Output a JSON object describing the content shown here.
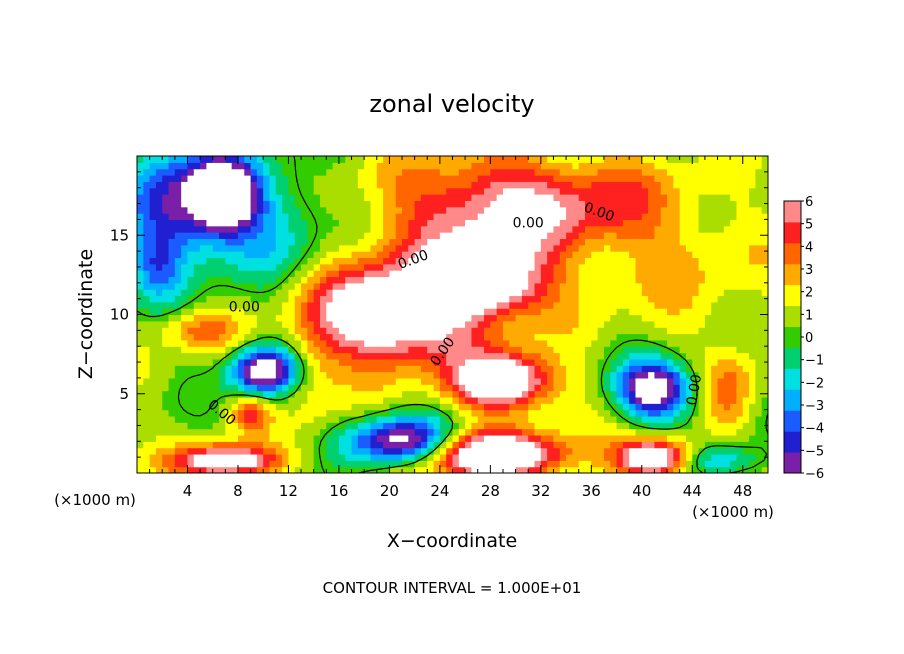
{
  "chart_data": {
    "type": "heatmap",
    "title": "zonal velocity",
    "xlabel": "X−coordinate",
    "ylabel": "Z−coordinate",
    "x_unit_label": "(×1000 m)",
    "y_unit_label": "(×1000 m)",
    "xlim": [
      0,
      50
    ],
    "ylim": [
      0,
      20
    ],
    "x_ticks": [
      4,
      8,
      12,
      16,
      20,
      24,
      28,
      32,
      36,
      40,
      44,
      48
    ],
    "y_ticks": [
      5,
      10,
      15
    ],
    "colorbar": {
      "min": -6,
      "max": 6,
      "ticks": [
        6,
        5,
        4,
        3,
        2,
        1,
        0,
        -1,
        -2,
        -3,
        -4,
        -5,
        -6
      ],
      "colors": [
        "#7a1fa8",
        "#2020d0",
        "#1a5cff",
        "#00b0ff",
        "#00e0e0",
        "#00d070",
        "#33cc00",
        "#aadd00",
        "#ffff00",
        "#ffaa00",
        "#ff6600",
        "#ff2020",
        "#ff8888"
      ]
    },
    "features": [
      {
        "x": 7,
        "z": 17.5,
        "rx": 2.5,
        "rz": 2.2,
        "value": -9
      },
      {
        "x": 4,
        "z": 17,
        "rx": 4,
        "rz": 4,
        "value": -5
      },
      {
        "x": 11,
        "z": 16,
        "rx": 4,
        "rz": 4,
        "value": -3
      },
      {
        "x": 2,
        "z": 17,
        "rx": 3,
        "rz": 4,
        "value": -2
      },
      {
        "x": 1.5,
        "z": 13,
        "rx": 2,
        "rz": 2,
        "value": -3
      },
      {
        "x": 27,
        "z": 15,
        "rx": 8,
        "rz": 5,
        "value": 4
      },
      {
        "x": 30,
        "z": 17,
        "rx": 8,
        "rz": 3,
        "value": 3
      },
      {
        "x": 28,
        "z": 12,
        "rx": 4,
        "rz": 2,
        "value": 6
      },
      {
        "x": 20,
        "z": 10,
        "rx": 6,
        "rz": 3,
        "value": 9
      },
      {
        "x": 29,
        "z": 5.8,
        "rx": 4,
        "rz": 1.8,
        "value": 9
      },
      {
        "x": 10,
        "z": 6.5,
        "rx": 2.5,
        "rz": 1.5,
        "value": -9
      },
      {
        "x": 41,
        "z": 5.3,
        "rx": 3,
        "rz": 1.8,
        "value": -9
      },
      {
        "x": 28,
        "z": 1.2,
        "rx": 6,
        "rz": 1.5,
        "value": 9
      },
      {
        "x": 21,
        "z": 2,
        "rx": 4,
        "rz": 1.5,
        "value": -9
      },
      {
        "x": 41,
        "z": 1,
        "rx": 3,
        "rz": 1.2,
        "value": 9
      },
      {
        "x": 7,
        "z": 0.8,
        "rx": 4,
        "rz": 1,
        "value": 8
      },
      {
        "x": 47,
        "z": 5,
        "rx": 2,
        "rz": 2.5,
        "value": 3
      },
      {
        "x": 5,
        "z": 9,
        "rx": 3,
        "rz": 1.2,
        "value": 3
      },
      {
        "x": 44,
        "z": 13,
        "rx": 7,
        "rz": 5,
        "value": 1.5
      },
      {
        "x": 38,
        "z": 17,
        "rx": 6,
        "rz": 3,
        "value": 2
      },
      {
        "x": 9,
        "z": 3.8,
        "rx": 1.5,
        "rz": 1,
        "value": 4
      },
      {
        "x": 14,
        "z": 6,
        "rx": 2,
        "rz": 4,
        "value": 1.5
      },
      {
        "x": 46,
        "z": 0.8,
        "rx": 3,
        "rz": 1,
        "value": -4
      }
    ],
    "contour_labels": [
      "0.00",
      "0.00",
      "0.00",
      "0.00",
      "0.00",
      "0.00",
      "0.00"
    ],
    "footer": "CONTOUR INTERVAL = 1.000E+01"
  }
}
